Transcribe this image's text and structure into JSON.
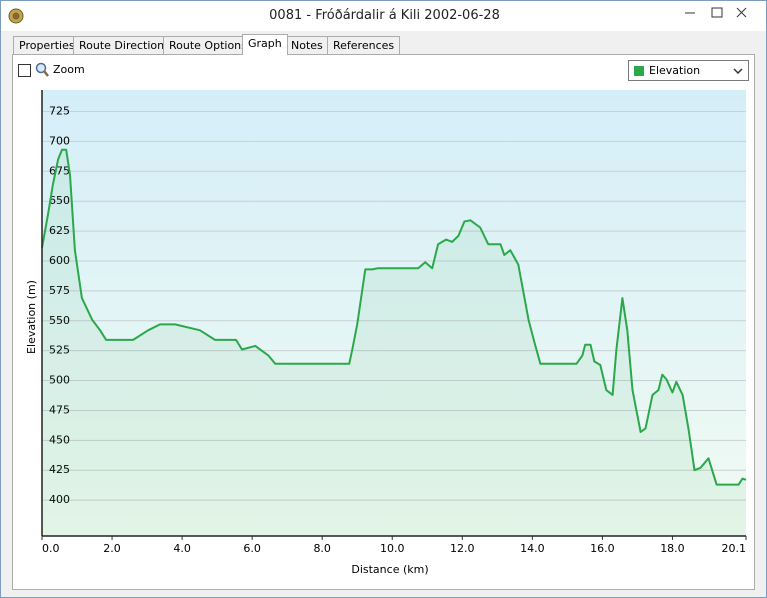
{
  "window": {
    "title": "0081 - Fróðárdalir á Kili 2002-06-28"
  },
  "tabs": [
    "Properties",
    "Route Directions",
    "Route Options",
    "Graph",
    "Notes",
    "References"
  ],
  "toolbar": {
    "zoom": "Zoom"
  },
  "chart_data": {
    "type": "line",
    "xlabel": "Distance  (km)",
    "ylabel": "Elevation (m)",
    "x": [
      0,
      0.17,
      0.31,
      0.46,
      0.57,
      0.69,
      0.8,
      0.94,
      1.14,
      1.43,
      1.66,
      1.83,
      2.6,
      3.03,
      3.37,
      3.8,
      4.51,
      4.94,
      5.54,
      5.71,
      6.09,
      6.46,
      6.66,
      8.77,
      8.86,
      9.0,
      9.23,
      9.43,
      9.6,
      10.74,
      10.94,
      11.14,
      11.31,
      11.54,
      11.71,
      11.89,
      12.06,
      12.23,
      12.51,
      12.74,
      13.09,
      13.2,
      13.37,
      13.6,
      13.89,
      14.06,
      14.23,
      15.26,
      15.43,
      15.51,
      15.66,
      15.77,
      15.94,
      16.11,
      16.29,
      16.4,
      16.57,
      16.71,
      16.86,
      17.09,
      17.23,
      17.43,
      17.6,
      17.71,
      17.83,
      18.0,
      18.11,
      18.29,
      18.46,
      18.63,
      18.8,
      19.03,
      19.26,
      19.89,
      20.0,
      20.1
    ],
    "series": [
      {
        "name": "Elevation",
        "color": "#2aa84a",
        "values": [
          611,
          639,
          664,
          685,
          693,
          693,
          672,
          609,
          569,
          551,
          542,
          534,
          534,
          542,
          547,
          547,
          542,
          534,
          534,
          526,
          529,
          521,
          514,
          514,
          526,
          547,
          593,
          593,
          594,
          594,
          599,
          594,
          614,
          618,
          616,
          621,
          633,
          634,
          628,
          614,
          614,
          605,
          609,
          597,
          551,
          532,
          514,
          514,
          521,
          530,
          530,
          516,
          513,
          492,
          488,
          526,
          569,
          542,
          492,
          457,
          460,
          488,
          492,
          505,
          501,
          490,
          499,
          488,
          459,
          425,
          427,
          435,
          413,
          413,
          418,
          417
        ]
      }
    ],
    "xlim": [
      0,
      20.1
    ],
    "ylim": [
      370,
      743
    ],
    "xticks": [
      {
        "value": 0,
        "label": "0.0"
      },
      {
        "value": 2,
        "label": "2.0"
      },
      {
        "value": 4,
        "label": "4.0"
      },
      {
        "value": 6,
        "label": "6.0"
      },
      {
        "value": 8,
        "label": "8.0"
      },
      {
        "value": 10,
        "label": "10.0"
      },
      {
        "value": 12,
        "label": "12.0"
      },
      {
        "value": 14,
        "label": "14.0"
      },
      {
        "value": 16,
        "label": "16.0"
      },
      {
        "value": 18,
        "label": "18.0"
      },
      {
        "value": 20.1,
        "label": "20.1"
      }
    ],
    "yticks": [
      400,
      425,
      450,
      475,
      500,
      525,
      550,
      575,
      600,
      625,
      650,
      675,
      700,
      725
    ],
    "grid": true
  }
}
